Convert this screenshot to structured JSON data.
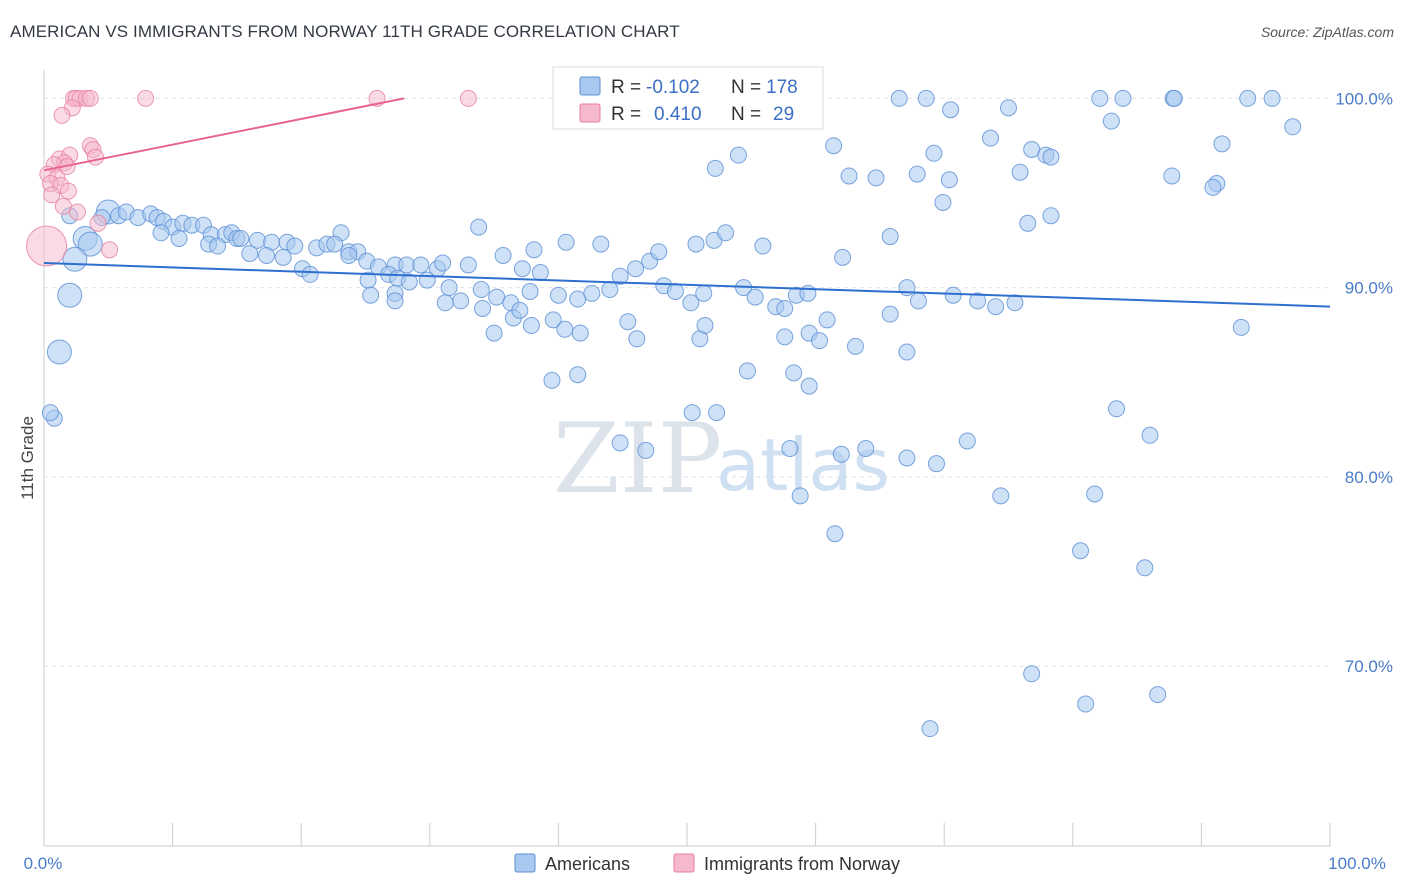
{
  "title": "AMERICAN VS IMMIGRANTS FROM NORWAY 11TH GRADE CORRELATION CHART",
  "source": "Source: ZipAtlas.com",
  "watermark": {
    "zip": "ZIP",
    "atlas": "atlas"
  },
  "legend": {
    "rows": [
      {
        "r_label": "R =",
        "r_value": "-0.102",
        "n_label": "N =",
        "n_value": "178",
        "color": "#a8c8ef"
      },
      {
        "r_label": "R =",
        "r_value": "0.410",
        "n_label": "N =",
        "n_value": "29",
        "color": "#f6b8cb"
      }
    ]
  },
  "bottom_legend": [
    {
      "label": "Americans",
      "color": "#a8c8ef"
    },
    {
      "label": "Immigrants from Norway",
      "color": "#f6b8cb"
    }
  ],
  "chart_data": {
    "type": "scatter",
    "ylabel": "11th Grade",
    "xlim": [
      0,
      100
    ],
    "ylim": [
      60.5,
      101.5
    ],
    "x_tick_labels": [
      "0.0%",
      "100.0%"
    ],
    "y_ticks": [
      70,
      80,
      90,
      100
    ],
    "y_tick_labels": [
      "70.0%",
      "80.0%",
      "90.0%",
      "100.0%"
    ],
    "grid": "horizontal dashed",
    "legend_placement": "top-center",
    "series": [
      {
        "name": "Americans",
        "color": "#a8c8ef",
        "stroke": "#5b8fd6",
        "trend": {
          "x": [
            0,
            100
          ],
          "y": [
            91.3,
            89.0
          ],
          "color": "#2f6fcf"
        },
        "points": [
          [
            66.5,
            100.0
          ],
          [
            68.6,
            100.0
          ],
          [
            82.1,
            100.0
          ],
          [
            83.9,
            100.0
          ],
          [
            87.8,
            100.0
          ],
          [
            87.9,
            100.0
          ],
          [
            93.6,
            100.0
          ],
          [
            95.5,
            100.0
          ],
          [
            75.0,
            99.5
          ],
          [
            70.5,
            99.4
          ],
          [
            83.0,
            98.8
          ],
          [
            97.1,
            98.5
          ],
          [
            73.6,
            97.9
          ],
          [
            61.4,
            97.5
          ],
          [
            91.6,
            97.6
          ],
          [
            76.8,
            97.3
          ],
          [
            69.2,
            97.1
          ],
          [
            77.9,
            97.0
          ],
          [
            78.3,
            96.9
          ],
          [
            54.0,
            97.0
          ],
          [
            52.2,
            96.3
          ],
          [
            75.9,
            96.1
          ],
          [
            67.9,
            96.0
          ],
          [
            62.6,
            95.9
          ],
          [
            64.7,
            95.8
          ],
          [
            87.7,
            95.9
          ],
          [
            70.4,
            95.7
          ],
          [
            91.2,
            95.5
          ],
          [
            90.9,
            95.3
          ],
          [
            69.9,
            94.5
          ],
          [
            78.3,
            93.8
          ],
          [
            76.5,
            93.4
          ],
          [
            5.0,
            94.0
          ],
          [
            5.8,
            93.8
          ],
          [
            6.4,
            94.0
          ],
          [
            7.3,
            93.7
          ],
          [
            4.5,
            93.7
          ],
          [
            8.3,
            93.9
          ],
          [
            8.8,
            93.7
          ],
          [
            9.3,
            93.5
          ],
          [
            10.0,
            93.2
          ],
          [
            10.8,
            93.4
          ],
          [
            11.5,
            93.3
          ],
          [
            12.4,
            93.3
          ],
          [
            13.0,
            92.8
          ],
          [
            14.1,
            92.8
          ],
          [
            14.6,
            92.9
          ],
          [
            15.0,
            92.6
          ],
          [
            16.6,
            92.5
          ],
          [
            17.7,
            92.4
          ],
          [
            18.9,
            92.4
          ],
          [
            19.5,
            92.2
          ],
          [
            21.2,
            92.1
          ],
          [
            22.0,
            92.3
          ],
          [
            23.1,
            92.9
          ],
          [
            23.7,
            91.9
          ],
          [
            9.1,
            92.9
          ],
          [
            10.5,
            92.6
          ],
          [
            12.8,
            92.3
          ],
          [
            13.5,
            92.2
          ],
          [
            15.3,
            92.6
          ],
          [
            16.0,
            91.8
          ],
          [
            17.3,
            91.7
          ],
          [
            18.6,
            91.6
          ],
          [
            20.1,
            91.0
          ],
          [
            20.7,
            90.7
          ],
          [
            22.6,
            92.3
          ],
          [
            24.4,
            91.9
          ],
          [
            25.1,
            91.4
          ],
          [
            26.0,
            91.1
          ],
          [
            27.3,
            91.2
          ],
          [
            28.2,
            91.2
          ],
          [
            29.3,
            91.2
          ],
          [
            30.6,
            91.0
          ],
          [
            31.0,
            91.3
          ],
          [
            33.0,
            91.2
          ],
          [
            33.8,
            93.2
          ],
          [
            35.7,
            91.7
          ],
          [
            37.2,
            91.0
          ],
          [
            38.1,
            92.0
          ],
          [
            25.2,
            90.4
          ],
          [
            26.8,
            90.7
          ],
          [
            27.5,
            90.5
          ],
          [
            28.4,
            90.3
          ],
          [
            29.8,
            90.4
          ],
          [
            31.5,
            90.0
          ],
          [
            32.4,
            89.3
          ],
          [
            34.0,
            89.9
          ],
          [
            35.2,
            89.5
          ],
          [
            36.3,
            89.2
          ],
          [
            37.8,
            89.8
          ],
          [
            38.6,
            90.8
          ],
          [
            40.0,
            89.6
          ],
          [
            41.5,
            89.4
          ],
          [
            42.6,
            89.7
          ],
          [
            44.0,
            89.9
          ],
          [
            44.8,
            90.6
          ],
          [
            46.0,
            91.0
          ],
          [
            47.1,
            91.4
          ],
          [
            48.2,
            90.1
          ],
          [
            49.1,
            89.8
          ],
          [
            50.3,
            89.2
          ],
          [
            51.3,
            89.7
          ],
          [
            52.1,
            92.5
          ],
          [
            53.0,
            92.9
          ],
          [
            54.4,
            90.0
          ],
          [
            55.3,
            89.5
          ],
          [
            55.9,
            92.2
          ],
          [
            56.9,
            89.0
          ],
          [
            57.6,
            88.9
          ],
          [
            58.5,
            89.6
          ],
          [
            59.4,
            89.7
          ],
          [
            40.6,
            92.4
          ],
          [
            43.3,
            92.3
          ],
          [
            47.8,
            91.9
          ],
          [
            50.7,
            92.3
          ],
          [
            25.4,
            89.6
          ],
          [
            27.3,
            89.7
          ],
          [
            31.2,
            89.2
          ],
          [
            34.1,
            88.9
          ],
          [
            35.0,
            87.6
          ],
          [
            36.5,
            88.4
          ],
          [
            37.0,
            88.8
          ],
          [
            37.9,
            88.0
          ],
          [
            39.6,
            88.3
          ],
          [
            40.5,
            87.8
          ],
          [
            41.7,
            87.6
          ],
          [
            45.4,
            88.2
          ],
          [
            46.1,
            87.3
          ],
          [
            51.0,
            87.3
          ],
          [
            51.4,
            88.0
          ],
          [
            54.7,
            85.6
          ],
          [
            57.6,
            87.4
          ],
          [
            59.5,
            87.6
          ],
          [
            60.9,
            88.3
          ],
          [
            65.8,
            88.6
          ],
          [
            67.1,
            90.0
          ],
          [
            68.0,
            89.3
          ],
          [
            70.7,
            89.6
          ],
          [
            72.6,
            89.3
          ],
          [
            74.0,
            89.0
          ],
          [
            75.5,
            89.2
          ],
          [
            62.1,
            91.6
          ],
          [
            65.8,
            92.7
          ],
          [
            39.5,
            85.1
          ],
          [
            41.5,
            85.4
          ],
          [
            58.3,
            85.5
          ],
          [
            59.5,
            84.8
          ],
          [
            63.1,
            86.9
          ],
          [
            60.3,
            87.2
          ],
          [
            67.1,
            86.6
          ],
          [
            93.1,
            87.9
          ],
          [
            0.8,
            83.1
          ],
          [
            0.5,
            83.4
          ],
          [
            83.4,
            83.6
          ],
          [
            86.0,
            82.2
          ],
          [
            50.4,
            83.4
          ],
          [
            52.3,
            83.4
          ],
          [
            44.8,
            81.8
          ],
          [
            46.8,
            81.4
          ],
          [
            58.0,
            81.5
          ],
          [
            62.0,
            81.2
          ],
          [
            63.9,
            81.5
          ],
          [
            67.1,
            81.0
          ],
          [
            69.4,
            80.7
          ],
          [
            71.8,
            81.9
          ],
          [
            58.8,
            79.0
          ],
          [
            74.4,
            79.0
          ],
          [
            76.8,
            69.6
          ],
          [
            81.7,
            79.1
          ],
          [
            80.6,
            76.1
          ],
          [
            81.0,
            68.0
          ],
          [
            85.6,
            75.2
          ],
          [
            86.6,
            68.5
          ],
          [
            68.9,
            66.7
          ],
          [
            61.5,
            77.0
          ],
          [
            2.0,
            93.8
          ],
          [
            3.2,
            92.6
          ],
          [
            3.6,
            92.3
          ],
          [
            2.4,
            91.5
          ],
          [
            2.0,
            89.6
          ],
          [
            1.2,
            86.6
          ],
          [
            27.3,
            89.3
          ],
          [
            23.7,
            91.7
          ]
        ],
        "large_points": [
          [
            5.0,
            94.0
          ],
          [
            3.2,
            92.6
          ],
          [
            3.6,
            92.3
          ],
          [
            2.4,
            91.5
          ],
          [
            2.0,
            89.6
          ],
          [
            1.2,
            86.6
          ]
        ]
      },
      {
        "name": "Immigrants from Norway",
        "color": "#f6b8cb",
        "stroke": "#e77fa0",
        "trend": {
          "x": [
            0,
            28
          ],
          "y": [
            96.2,
            100.0
          ],
          "color": "#e8648f"
        },
        "points": [
          [
            2.3,
            100.0
          ],
          [
            2.5,
            100.0
          ],
          [
            2.8,
            100.0
          ],
          [
            3.3,
            100.0
          ],
          [
            3.6,
            100.0
          ],
          [
            7.9,
            100.0
          ],
          [
            25.9,
            100.0
          ],
          [
            33.0,
            100.0
          ],
          [
            2.2,
            99.5
          ],
          [
            1.4,
            99.1
          ],
          [
            3.6,
            97.5
          ],
          [
            3.8,
            97.3
          ],
          [
            4.0,
            96.9
          ],
          [
            1.2,
            96.8
          ],
          [
            2.0,
            97.0
          ],
          [
            1.6,
            96.6
          ],
          [
            0.8,
            96.5
          ],
          [
            0.3,
            96.0
          ],
          [
            1.0,
            95.8
          ],
          [
            0.5,
            95.5
          ],
          [
            1.3,
            95.4
          ],
          [
            1.9,
            95.1
          ],
          [
            0.6,
            94.9
          ],
          [
            1.5,
            94.3
          ],
          [
            2.6,
            94.0
          ],
          [
            4.2,
            93.4
          ],
          [
            5.1,
            92.0
          ],
          [
            0.2,
            92.2
          ],
          [
            1.8,
            96.4
          ]
        ],
        "large_points": [
          [
            0.2,
            92.2
          ]
        ]
      }
    ]
  }
}
